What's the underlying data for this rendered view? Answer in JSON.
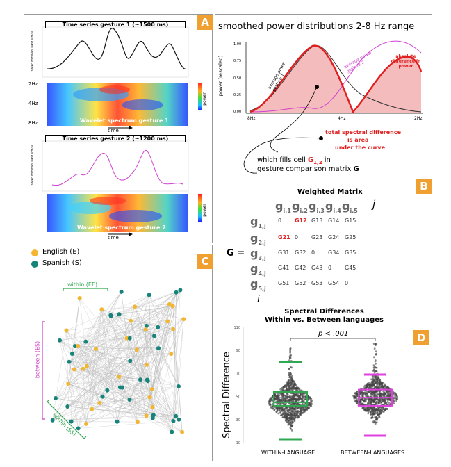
{
  "panel_a": {
    "badge": "A",
    "gesture1_title": "Time series gesture 1 (~1500 ms)",
    "gesture2_title": "Time series gesture 2 (~1200 ms)",
    "ylabel_speed": "speed dominant hand (cm/s)",
    "hz_2": "2Hz",
    "hz_4": "4Hz",
    "hz_8": "8Hz",
    "wavelet1_label": "Wavelet spectrum gesture 1",
    "wavelet2_label": "Wavelet spectrum gesture 2",
    "time_label": "time",
    "power_label": "power"
  },
  "panel_b": {
    "badge": "B",
    "title": "smoothed power distributions 2-8 Hz range",
    "ylabel": "power (rescaled)",
    "x_8hz": "8Hz",
    "x_4hz": "4Hz",
    "x_2hz": "2Hz",
    "y_ticks": [
      "1.00",
      "0.75",
      "0.50",
      "0.25",
      "0.00"
    ],
    "avg1": "average power gesture 1",
    "avg2": "average power gesture 2",
    "absdiff": "absolute difference in power",
    "total_line1": "total spectral difference",
    "total_line2": "is area",
    "total_line3": "under the curve",
    "fills_pre": "which fills cell ",
    "fills_cell": "G",
    "fills_sub": "1,2",
    "fills_post": " in",
    "matrix_line_pre": "gesture comparison matrix ",
    "matrix_line_bold": "G",
    "weighted_title": "Weighted Matrix",
    "g_eq": "G =",
    "col_headers": [
      "g",
      "g",
      "g",
      "g",
      "g"
    ],
    "col_subs": [
      "i,1",
      "i,2",
      "i,3",
      "i,4",
      "i,5"
    ],
    "j_label": "j",
    "i_label": "i",
    "row_headers": [
      "g",
      "g",
      "g",
      "g",
      "g"
    ],
    "row_subs": [
      "1,j",
      "2,j",
      "3,j",
      "4,j",
      "5,j"
    ],
    "cells": [
      [
        "0",
        "G12",
        "G13",
        "G14",
        "G15"
      ],
      [
        "G21",
        "0",
        "G23",
        "G24",
        "G25"
      ],
      [
        "G31",
        "G32",
        "0",
        "G34",
        "G35"
      ],
      [
        "G41",
        "G42",
        "G43",
        "0",
        "G45"
      ],
      [
        "G51",
        "G52",
        "G53",
        "G54",
        "0"
      ]
    ]
  },
  "panel_c": {
    "badge": "C",
    "legend_english": "English (E)",
    "legend_spanish": "Spanish (S)",
    "within_ee": "within (EE)",
    "between_es": "between (ES)",
    "within_ss": "within (SS)",
    "colors": {
      "english": "#f2b632",
      "spanish": "#16847a",
      "within": "#2fa84f",
      "between": "#d040c8"
    }
  },
  "panel_d": {
    "badge": "D",
    "chart_data": {
      "type": "scatter",
      "title": "Spectral Differences",
      "subtitle": "Within vs. Between languages",
      "ylabel": "Spectral Difference",
      "categories": [
        "WITHIN-LANGUAGE",
        "BETWEEN-LANGUAGES"
      ],
      "annotation": "p < .001",
      "y_ticks": [
        10,
        30,
        50,
        70,
        90,
        110
      ],
      "ylim": [
        10,
        110
      ],
      "series": [
        {
          "name": "WITHIN-LANGUAGE",
          "min": 13,
          "q1": 42,
          "median": 45,
          "q3": 54,
          "max": 80,
          "whisker_low": 13,
          "whisker_high": 80,
          "color": "#2fa84f"
        },
        {
          "name": "BETWEEN-LANGUAGES",
          "min": 15,
          "q1": 42,
          "median": 49,
          "q3": 56,
          "max": 82,
          "whisker_low": 16,
          "whisker_high": 69,
          "color": "#e040e0"
        }
      ]
    }
  }
}
